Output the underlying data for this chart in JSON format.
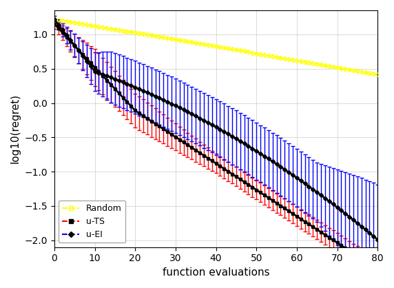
{
  "random_color": "#ffff00",
  "uts_color": "#ff0000",
  "uei_color": "#0000ff",
  "line_color": "#000000",
  "xlabel": "function evaluations",
  "ylabel": "log10(regret)",
  "xlim": [
    0,
    80
  ],
  "ylim": [
    -2.1,
    1.35
  ],
  "yticks": [
    -2.0,
    -1.5,
    -1.0,
    -0.5,
    0.0,
    0.5,
    1.0
  ],
  "xticks": [
    0,
    10,
    20,
    30,
    40,
    50,
    60,
    70,
    80
  ]
}
